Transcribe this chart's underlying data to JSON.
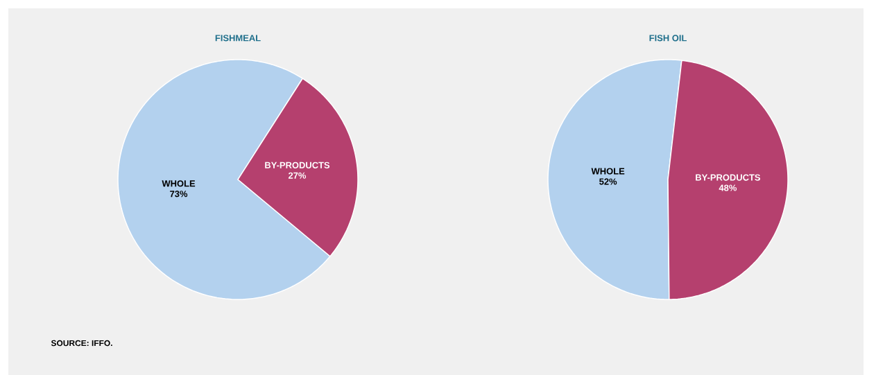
{
  "chart_data": [
    {
      "type": "pie",
      "title": "FISHMEAL",
      "categories": [
        "WHOLE",
        "BY-PRODUCTS"
      ],
      "values": [
        73,
        27
      ],
      "colors": [
        "#b3d1ee",
        "#b5406e"
      ],
      "value_labels": [
        "73%",
        "27%"
      ],
      "annotations": [
        "SOURCE: IFFO."
      ]
    },
    {
      "type": "pie",
      "title": "FISH OIL",
      "categories": [
        "WHOLE",
        "BY-PRODUCTS"
      ],
      "values": [
        52,
        48
      ],
      "colors": [
        "#b3d1ee",
        "#b5406e"
      ],
      "value_labels": [
        "52%",
        "48%"
      ]
    }
  ]
}
